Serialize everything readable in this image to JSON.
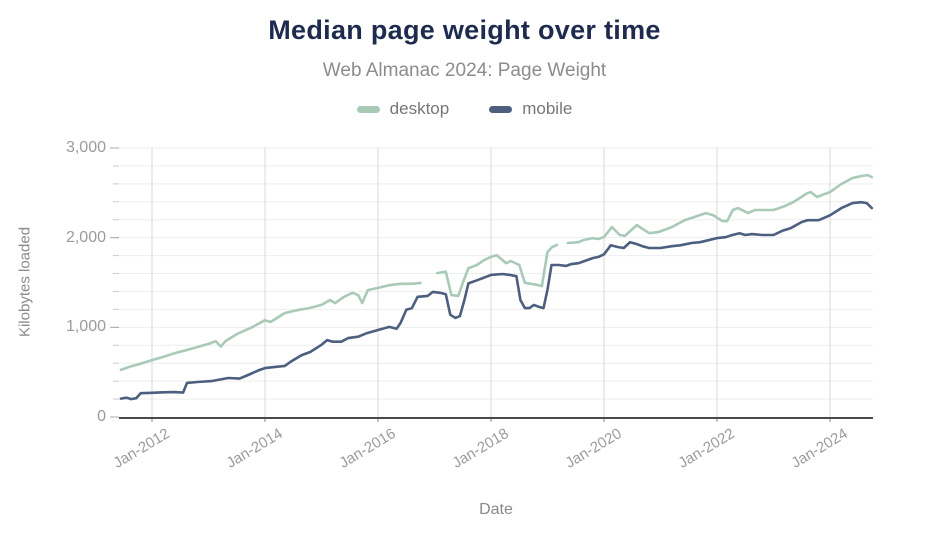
{
  "chart_data": {
    "type": "line",
    "title": "Median page weight over time",
    "subtitle": "Web Almanac 2024: Page Weight",
    "xlabel": "Date",
    "ylabel": "Kilobytes loaded",
    "x_unit": "decimal_year",
    "x_range": [
      2011.42,
      2024.78
    ],
    "ylim": [
      0,
      3000
    ],
    "y_major_ticks": [
      0,
      1000,
      2000,
      3000
    ],
    "y_tick_labels": [
      "0",
      "1,000",
      "2,000",
      "3,000"
    ],
    "y_minor_step": 200,
    "x_ticks": [
      2012,
      2014,
      2016,
      2018,
      2020,
      2022,
      2024
    ],
    "x_tick_labels": [
      "Jan-2012",
      "Jan-2014",
      "Jan-2016",
      "Jan-2018",
      "Jan-2020",
      "Jan-2022",
      "Jan-2024"
    ],
    "grid": {
      "vertical_color": "#d8d8d8",
      "minor_horizontal_color": "#eeeeee",
      "axis_color": "#4a4a4a"
    },
    "legend_position": "top",
    "series": [
      {
        "name": "desktop",
        "color": "#a9cab7",
        "note": "line has data gaps late-2016 and early-2019; values in KB",
        "segments": [
          [
            [
              2011.45,
              525
            ],
            [
              2011.6,
              560
            ],
            [
              2011.75,
              585
            ],
            [
              2011.9,
              615
            ],
            [
              2012.0,
              635
            ],
            [
              2012.2,
              670
            ],
            [
              2012.4,
              712
            ],
            [
              2012.6,
              745
            ],
            [
              2012.8,
              780
            ],
            [
              2013.0,
              815
            ],
            [
              2013.13,
              845
            ],
            [
              2013.22,
              785
            ],
            [
              2013.3,
              845
            ],
            [
              2013.5,
              925
            ],
            [
              2013.75,
              995
            ],
            [
              2014.0,
              1080
            ],
            [
              2014.1,
              1060
            ],
            [
              2014.35,
              1160
            ],
            [
              2014.6,
              1195
            ],
            [
              2014.78,
              1215
            ],
            [
              2015.0,
              1250
            ],
            [
              2015.15,
              1305
            ],
            [
              2015.24,
              1270
            ],
            [
              2015.4,
              1340
            ],
            [
              2015.55,
              1385
            ],
            [
              2015.65,
              1360
            ],
            [
              2015.72,
              1270
            ],
            [
              2015.82,
              1415
            ],
            [
              2016.0,
              1440
            ],
            [
              2016.2,
              1470
            ],
            [
              2016.4,
              1485
            ],
            [
              2016.6,
              1485
            ],
            [
              2016.75,
              1495
            ]
          ],
          [
            [
              2017.05,
              1605
            ],
            [
              2017.2,
              1620
            ],
            [
              2017.3,
              1360
            ],
            [
              2017.42,
              1350
            ],
            [
              2017.5,
              1495
            ],
            [
              2017.6,
              1660
            ],
            [
              2017.75,
              1695
            ],
            [
              2017.88,
              1750
            ],
            [
              2018.0,
              1785
            ],
            [
              2018.1,
              1805
            ],
            [
              2018.27,
              1715
            ],
            [
              2018.35,
              1740
            ],
            [
              2018.5,
              1695
            ],
            [
              2018.6,
              1495
            ],
            [
              2018.8,
              1475
            ],
            [
              2018.9,
              1460
            ],
            [
              2019.0,
              1840
            ],
            [
              2019.08,
              1895
            ],
            [
              2019.17,
              1918
            ]
          ],
          [
            [
              2019.36,
              1940
            ],
            [
              2019.55,
              1950
            ],
            [
              2019.63,
              1973
            ],
            [
              2019.8,
              1995
            ],
            [
              2019.9,
              1985
            ],
            [
              2020.0,
              2007
            ],
            [
              2020.14,
              2118
            ],
            [
              2020.28,
              2030
            ],
            [
              2020.37,
              2020
            ],
            [
              2020.58,
              2140
            ],
            [
              2020.8,
              2050
            ],
            [
              2020.96,
              2062
            ],
            [
              2021.2,
              2118
            ],
            [
              2021.43,
              2196
            ],
            [
              2021.6,
              2230
            ],
            [
              2021.8,
              2274
            ],
            [
              2021.93,
              2252
            ],
            [
              2022.1,
              2185
            ],
            [
              2022.18,
              2185
            ],
            [
              2022.28,
              2308
            ],
            [
              2022.37,
              2330
            ],
            [
              2022.55,
              2274
            ],
            [
              2022.67,
              2308
            ],
            [
              2023.0,
              2308
            ],
            [
              2023.2,
              2352
            ],
            [
              2023.35,
              2397
            ],
            [
              2023.6,
              2497
            ],
            [
              2023.66,
              2508
            ],
            [
              2023.77,
              2453
            ],
            [
              2023.9,
              2486
            ],
            [
              2024.0,
              2508
            ],
            [
              2024.2,
              2598
            ],
            [
              2024.4,
              2665
            ],
            [
              2024.55,
              2687
            ],
            [
              2024.67,
              2698
            ],
            [
              2024.74,
              2676
            ]
          ]
        ]
      },
      {
        "name": "mobile",
        "color": "#4d5f7f",
        "note": "values in KB",
        "segments": [
          [
            [
              2011.45,
              205
            ],
            [
              2011.55,
              215
            ],
            [
              2011.63,
              200
            ],
            [
              2011.72,
              210
            ],
            [
              2011.8,
              265
            ],
            [
              2012.0,
              270
            ],
            [
              2012.2,
              275
            ],
            [
              2012.4,
              278
            ],
            [
              2012.55,
              272
            ],
            [
              2012.62,
              380
            ],
            [
              2012.8,
              390
            ],
            [
              2013.05,
              400
            ],
            [
              2013.35,
              435
            ],
            [
              2013.55,
              428
            ],
            [
              2013.7,
              468
            ],
            [
              2013.9,
              524
            ],
            [
              2014.0,
              545
            ],
            [
              2014.2,
              560
            ],
            [
              2014.35,
              570
            ],
            [
              2014.45,
              615
            ],
            [
              2014.65,
              690
            ],
            [
              2014.8,
              725
            ],
            [
              2015.0,
              805
            ],
            [
              2015.1,
              858
            ],
            [
              2015.2,
              840
            ],
            [
              2015.35,
              840
            ],
            [
              2015.47,
              880
            ],
            [
              2015.65,
              895
            ],
            [
              2015.8,
              935
            ],
            [
              2016.0,
              970
            ],
            [
              2016.2,
              1005
            ],
            [
              2016.33,
              985
            ],
            [
              2016.4,
              1050
            ],
            [
              2016.5,
              1195
            ],
            [
              2016.6,
              1215
            ],
            [
              2016.7,
              1340
            ],
            [
              2016.88,
              1350
            ],
            [
              2016.97,
              1395
            ],
            [
              2017.1,
              1385
            ],
            [
              2017.2,
              1370
            ],
            [
              2017.28,
              1140
            ],
            [
              2017.37,
              1105
            ],
            [
              2017.45,
              1125
            ],
            [
              2017.53,
              1305
            ],
            [
              2017.6,
              1490
            ],
            [
              2017.75,
              1525
            ],
            [
              2017.9,
              1560
            ],
            [
              2018.0,
              1585
            ],
            [
              2018.2,
              1595
            ],
            [
              2018.33,
              1585
            ],
            [
              2018.45,
              1570
            ],
            [
              2018.52,
              1305
            ],
            [
              2018.6,
              1215
            ],
            [
              2018.68,
              1215
            ],
            [
              2018.76,
              1250
            ],
            [
              2018.85,
              1228
            ],
            [
              2018.93,
              1215
            ],
            [
              2019.0,
              1420
            ],
            [
              2019.07,
              1695
            ],
            [
              2019.2,
              1695
            ],
            [
              2019.33,
              1685
            ],
            [
              2019.42,
              1705
            ],
            [
              2019.55,
              1715
            ],
            [
              2019.7,
              1750
            ],
            [
              2019.8,
              1772
            ],
            [
              2019.9,
              1785
            ],
            [
              2020.0,
              1815
            ],
            [
              2020.12,
              1915
            ],
            [
              2020.25,
              1895
            ],
            [
              2020.35,
              1885
            ],
            [
              2020.46,
              1950
            ],
            [
              2020.57,
              1930
            ],
            [
              2020.68,
              1905
            ],
            [
              2020.8,
              1885
            ],
            [
              2021.0,
              1885
            ],
            [
              2021.2,
              1905
            ],
            [
              2021.35,
              1915
            ],
            [
              2021.55,
              1940
            ],
            [
              2021.7,
              1950
            ],
            [
              2021.85,
              1972
            ],
            [
              2022.0,
              1995
            ],
            [
              2022.15,
              2005
            ],
            [
              2022.27,
              2030
            ],
            [
              2022.4,
              2050
            ],
            [
              2022.5,
              2030
            ],
            [
              2022.62,
              2040
            ],
            [
              2022.8,
              2030
            ],
            [
              2023.0,
              2030
            ],
            [
              2023.15,
              2075
            ],
            [
              2023.3,
              2105
            ],
            [
              2023.5,
              2175
            ],
            [
              2023.6,
              2195
            ],
            [
              2023.8,
              2195
            ],
            [
              2024.0,
              2250
            ],
            [
              2024.2,
              2330
            ],
            [
              2024.4,
              2385
            ],
            [
              2024.55,
              2395
            ],
            [
              2024.65,
              2385
            ],
            [
              2024.74,
              2330
            ]
          ]
        ]
      }
    ]
  }
}
